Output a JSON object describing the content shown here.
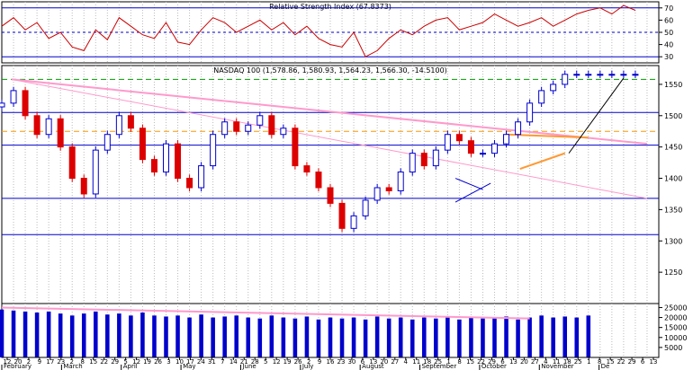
{
  "chart_data": [
    {
      "type": "line",
      "title": "Relative Strength Index (67.8373)",
      "y_ticks": [
        30,
        40,
        50,
        60,
        70
      ],
      "ylim": [
        25,
        75
      ],
      "reference_lines": [
        {
          "value": 70,
          "style": "solid",
          "color": "#0000cc"
        },
        {
          "value": 50,
          "style": "dashed",
          "color": "#0000cc"
        },
        {
          "value": 30,
          "style": "solid",
          "color": "#0000cc"
        }
      ],
      "series_color": "#cc0000",
      "x_days": [
        0,
        6,
        12,
        18,
        24,
        30,
        36,
        42,
        48,
        54,
        60,
        66,
        72,
        78,
        84,
        90,
        96,
        102,
        108,
        114,
        120,
        126,
        132,
        138,
        144,
        150,
        156,
        162,
        168,
        174,
        180,
        186,
        192,
        198,
        204,
        210,
        216,
        222,
        228,
        234,
        240,
        246,
        252,
        258,
        264,
        270,
        276,
        282,
        288,
        294,
        300,
        306,
        312,
        318,
        324
      ],
      "values": [
        55,
        62,
        52,
        58,
        45,
        50,
        38,
        35,
        52,
        44,
        62,
        55,
        48,
        45,
        58,
        42,
        40,
        52,
        62,
        58,
        50,
        55,
        60,
        52,
        58,
        48,
        55,
        45,
        40,
        38,
        50,
        30,
        35,
        45,
        52,
        48,
        55,
        60,
        62,
        52,
        55,
        58,
        65,
        60,
        55,
        58,
        62,
        55,
        60,
        65,
        68,
        70,
        65,
        72,
        68
      ]
    },
    {
      "type": "candlestick",
      "title": "NASDAQ 100 (1,578.86, 1,580.93, 1,564.23, 1,566.30, -14.5100)",
      "y_ticks": [
        1250,
        1300,
        1350,
        1400,
        1450,
        1500,
        1550
      ],
      "ylim": [
        1200,
        1580
      ],
      "up_color": "#0000cc",
      "down_color": "#dd0000",
      "horizontal_lines": [
        {
          "value": 1558,
          "style": "dashed",
          "color": "#009900"
        },
        {
          "value": 1505,
          "style": "solid",
          "color": "#0000cc"
        },
        {
          "value": 1475,
          "style": "dashed",
          "color": "#ff9900"
        },
        {
          "value": 1453,
          "style": "solid",
          "color": "#0000cc"
        },
        {
          "value": 1368,
          "style": "solid",
          "color": "#0000cc"
        },
        {
          "value": 1310,
          "style": "solid",
          "color": "#0000cc"
        }
      ],
      "trend_lines": [
        {
          "from": [
            5,
            1558
          ],
          "to": [
            330,
            1455
          ],
          "color": "#ff99cc",
          "width": 2
        },
        {
          "from": [
            5,
            1558
          ],
          "to": [
            330,
            1368
          ],
          "color": "#ff99cc",
          "width": 1
        },
        {
          "from": [
            258,
            1470
          ],
          "to": [
            300,
            1465
          ],
          "color": "#ff9933",
          "width": 2
        },
        {
          "from": [
            265,
            1415
          ],
          "to": [
            288,
            1440
          ],
          "color": "#ff9933",
          "width": 2
        },
        {
          "from": [
            232,
            1362
          ],
          "to": [
            250,
            1392
          ],
          "color": "#0000cc",
          "width": 1
        },
        {
          "from": [
            232,
            1400
          ],
          "to": [
            246,
            1382
          ],
          "color": "#0000cc",
          "width": 1
        },
        {
          "from": [
            290,
            1440
          ],
          "to": [
            318,
            1560
          ],
          "color": "#000000",
          "width": 1
        }
      ],
      "x_days": [
        0,
        6,
        12,
        18,
        24,
        30,
        36,
        42,
        48,
        54,
        60,
        66,
        72,
        78,
        84,
        90,
        96,
        102,
        108,
        114,
        120,
        126,
        132,
        138,
        144,
        150,
        156,
        162,
        168,
        174,
        180,
        186,
        192,
        198,
        204,
        210,
        216,
        222,
        228,
        234,
        240,
        246,
        252,
        258,
        264,
        270,
        276,
        282,
        288,
        294,
        300,
        306,
        312,
        318,
        324
      ],
      "close": [
        1520,
        1540,
        1500,
        1470,
        1495,
        1450,
        1400,
        1375,
        1445,
        1470,
        1500,
        1480,
        1430,
        1410,
        1455,
        1400,
        1385,
        1420,
        1470,
        1490,
        1475,
        1485,
        1500,
        1470,
        1480,
        1420,
        1410,
        1385,
        1360,
        1320,
        1340,
        1365,
        1385,
        1380,
        1410,
        1440,
        1420,
        1445,
        1470,
        1460,
        1440,
        1440,
        1455,
        1470,
        1490,
        1520,
        1540,
        1550,
        1566,
        1566,
        1566,
        1566,
        1566,
        1566,
        1566
      ]
    },
    {
      "type": "bar",
      "title": "",
      "y_ticks": [
        5000,
        10000,
        15000,
        20000,
        25000
      ],
      "ylim": [
        0,
        27000
      ],
      "bar_color": "#0000cc",
      "trend_line": {
        "from": [
          0,
          25000
        ],
        "to": [
          270,
          19500
        ],
        "color": "#ff99cc"
      },
      "x_days": [
        0,
        6,
        12,
        18,
        24,
        30,
        36,
        42,
        48,
        54,
        60,
        66,
        72,
        78,
        84,
        90,
        96,
        102,
        108,
        114,
        120,
        126,
        132,
        138,
        144,
        150,
        156,
        162,
        168,
        174,
        180,
        186,
        192,
        198,
        204,
        210,
        216,
        222,
        228,
        234,
        240,
        246,
        252,
        258,
        264,
        270,
        276,
        282,
        288,
        294,
        300
      ],
      "values": [
        24000,
        23500,
        23000,
        22500,
        23000,
        22000,
        21000,
        22000,
        23000,
        21500,
        22000,
        21000,
        22500,
        21000,
        20500,
        21000,
        20000,
        21500,
        20000,
        20500,
        21000,
        20000,
        19500,
        21000,
        20000,
        19500,
        20500,
        19000,
        20000,
        19500,
        20000,
        19000,
        20500,
        19500,
        20000,
        19000,
        20000,
        19500,
        20000,
        19000,
        20000,
        19500,
        20000,
        20500,
        19000,
        20000,
        21000,
        20000,
        20500,
        20000,
        21000
      ]
    }
  ],
  "x_axis": {
    "day_ticks": [
      "12",
      "20",
      "2",
      "9",
      "17",
      "23",
      "2",
      "8",
      "15",
      "22",
      "29",
      "5",
      "12",
      "19",
      "26",
      "3",
      "10",
      "17",
      "24",
      "31",
      "7",
      "14",
      "21",
      "28",
      "5",
      "12",
      "19",
      "26",
      "2",
      "9",
      "16",
      "23",
      "30",
      "6",
      "13",
      "20",
      "27",
      "4",
      "11",
      "18",
      "25",
      "1",
      "8",
      "15",
      "22",
      "29",
      "6",
      "13",
      "20",
      "27",
      "4",
      "11",
      "18",
      "25",
      "1",
      "8",
      "15",
      "22",
      "29",
      "6",
      "13"
    ],
    "month_labels": [
      "February",
      "March",
      "April",
      "May",
      "June",
      "July",
      "August",
      "September",
      "October",
      "November",
      "De"
    ]
  }
}
